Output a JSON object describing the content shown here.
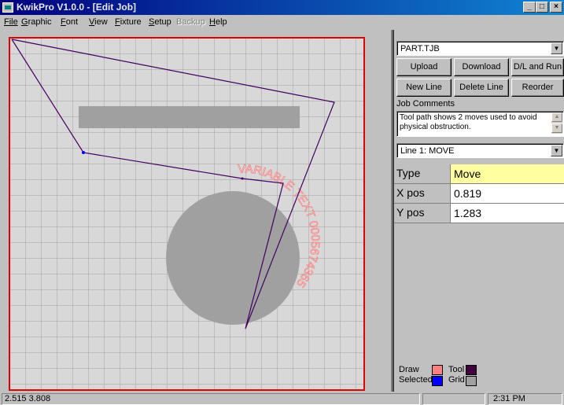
{
  "window": {
    "title": "KwikPro  V1.0.0 - [Edit Job]",
    "minimize_glyph": "_",
    "restore_glyph": "□",
    "close_glyph": "×"
  },
  "menu": {
    "items": [
      "File",
      "Graphic",
      "Font",
      "View",
      "Fixture",
      "Setup",
      "Backup",
      "Help"
    ],
    "disabled": [
      "Backup"
    ]
  },
  "job": {
    "file": "PART.TJB",
    "buttons": {
      "upload": "Upload",
      "download": "Download",
      "dl_run": "D/L and Run",
      "new_line": "New Line",
      "delete_line": "Delete Line",
      "reorder": "Reorder"
    },
    "comments_label": "Job Comments",
    "comments": "Tool path shows 2 moves used to avoid physical obstruction.",
    "line_select": "Line 1: MOVE"
  },
  "properties": [
    {
      "key": "Type",
      "value": "Move"
    },
    {
      "key": "X pos",
      "value": "0.819"
    },
    {
      "key": "Y pos",
      "value": "1.283"
    }
  ],
  "legend": {
    "draw_label": "Draw",
    "tool_label": "Tool",
    "selected_label": "Selected",
    "grid_label": "Grid",
    "draw_color": "#ff8080",
    "tool_color": "#400040",
    "selected_color": "#0000ff",
    "grid_color": "#a0a0a0"
  },
  "canvas": {
    "circle_text": "VARIABLE TEXT 0005674365",
    "path_color": "#400060",
    "border_color": "#e00000",
    "obstacle_color": "#a0a0a0"
  },
  "status": {
    "cursor": "2.515  3.808",
    "time": "2:31 PM"
  }
}
